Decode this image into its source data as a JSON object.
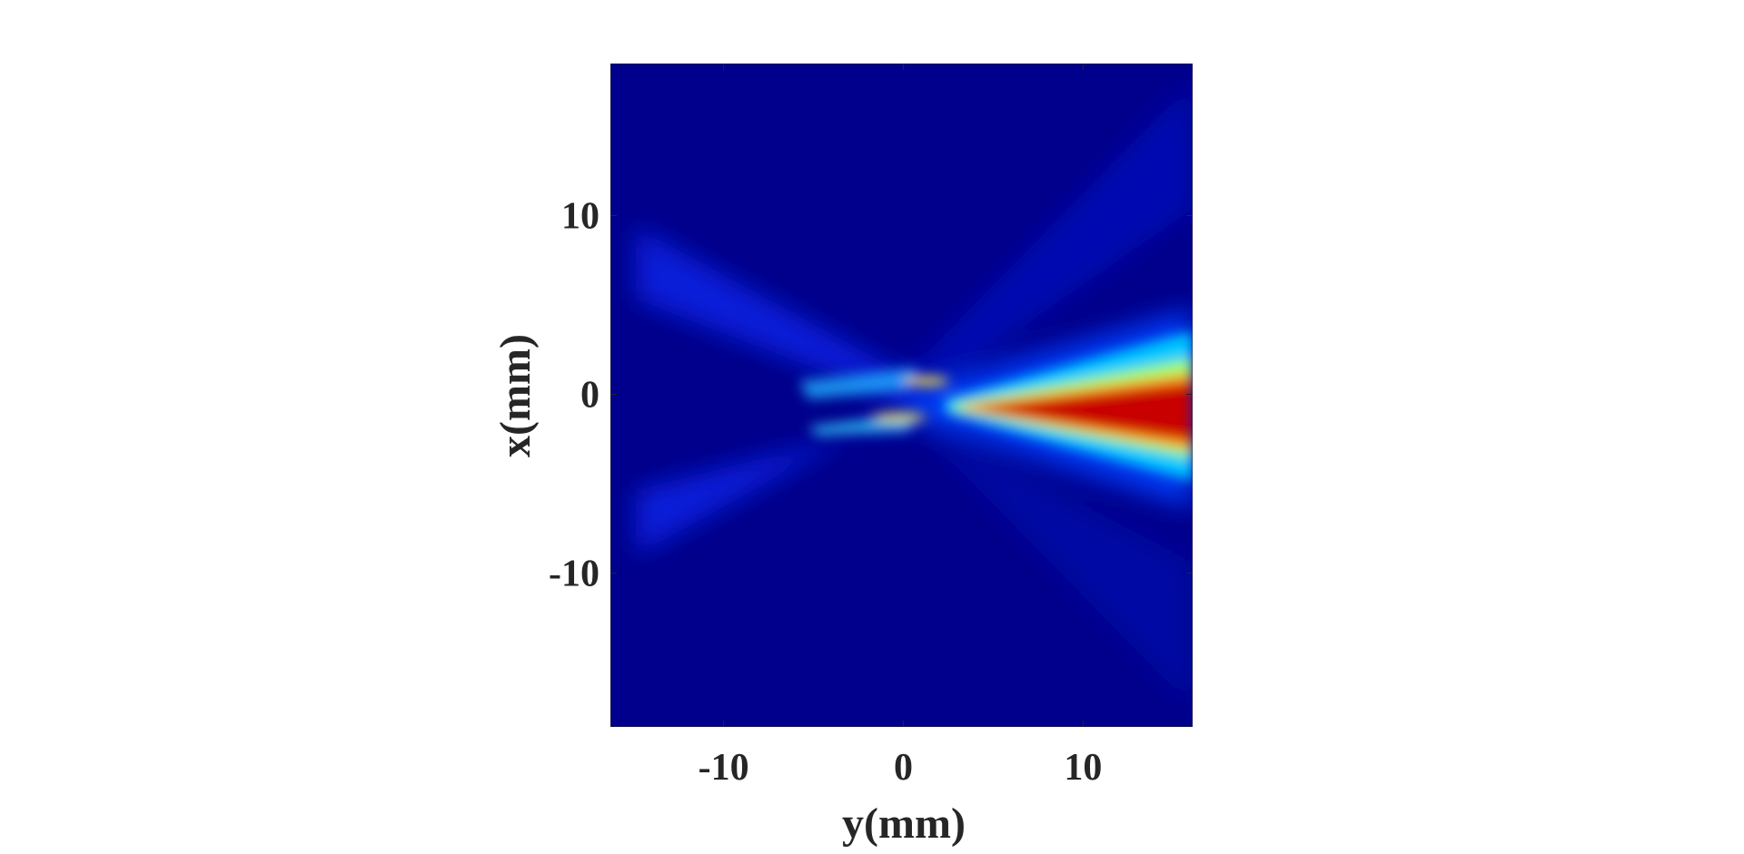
{
  "chart_data": {
    "type": "heatmap",
    "xlabel": "y(mm)",
    "ylabel": "x(mm)",
    "xlim": [
      -16.3,
      16.1
    ],
    "xticks": [
      -10,
      0,
      10
    ],
    "ylim": [
      -18.6,
      18.5
    ],
    "yticks": [
      -10,
      0,
      10
    ]
  }
}
